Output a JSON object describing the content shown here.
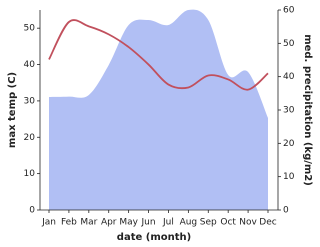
{
  "chart_data": {
    "type": "line-area",
    "categories": [
      "Jan",
      "Feb",
      "Mar",
      "Apr",
      "May",
      "Jun",
      "Jul",
      "Aug",
      "Sep",
      "Oct",
      "Nov",
      "Dec"
    ],
    "xlabel": "date (month)",
    "ylabel": "max temp (C)",
    "y2label": "med. precipitation (kg/m2)",
    "series": [
      {
        "name": "med. precipitation",
        "color": "#b1bff4",
        "axis": "y2",
        "kind": "area",
        "values": [
          33.9,
          34,
          34.5,
          43.5,
          55.5,
          57,
          55.5,
          60,
          57,
          40.5,
          41.4,
          27.6
        ]
      },
      {
        "name": "max temp",
        "color": "#c1505d",
        "kind": "line",
        "values": [
          41.4,
          51.7,
          50.5,
          48.3,
          44.8,
          40,
          34.5,
          33.7,
          37,
          35.9,
          33.1,
          37.6
        ]
      }
    ],
    "ylim": [
      0,
      55
    ],
    "yticks": [
      0,
      10,
      20,
      30,
      40,
      50
    ],
    "y2lim": [
      0,
      60
    ],
    "y2ticks": [
      0,
      10,
      20,
      30,
      40,
      50,
      60
    ]
  }
}
